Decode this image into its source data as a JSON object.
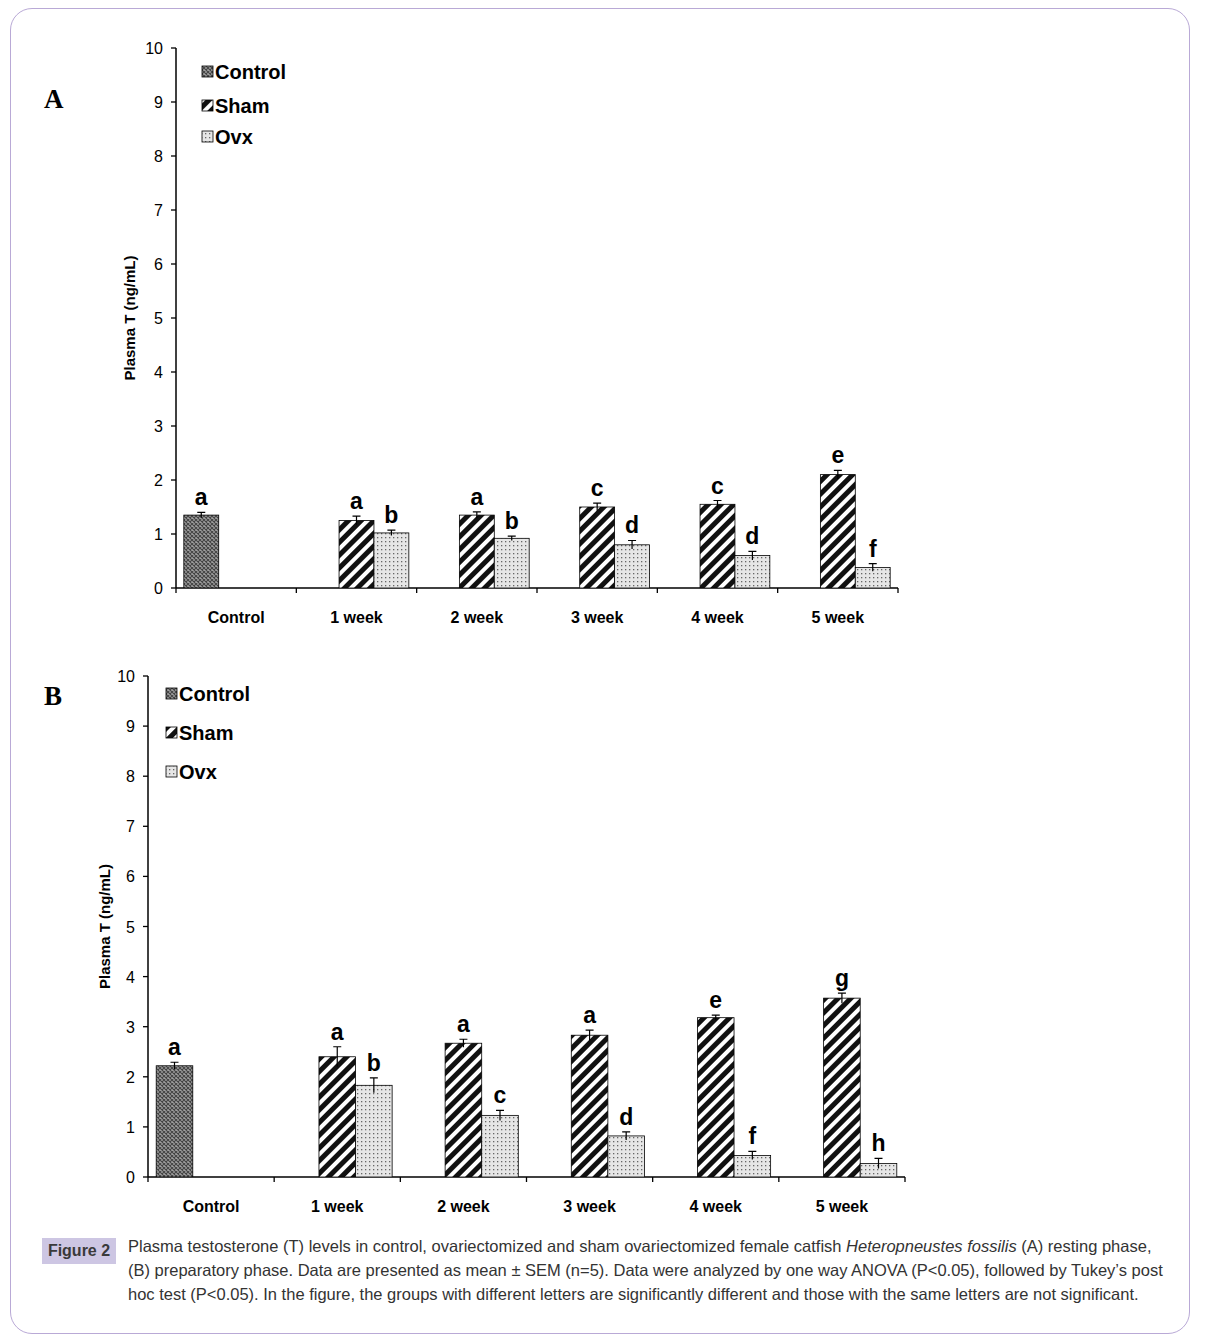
{
  "chart_data": [
    {
      "type": "bar",
      "title": "A",
      "y_label": "Plasma T (ng/mL)",
      "categories": [
        "Control",
        "1 week",
        "2 week",
        "3 week",
        "4 week",
        "5 week"
      ],
      "series": [
        {
          "name": "Control",
          "color": "#444444",
          "values": [
            1.35,
            null,
            null,
            null,
            null,
            null
          ],
          "errors": [
            0.05,
            null,
            null,
            null,
            null,
            null
          ],
          "letters": [
            "a",
            null,
            null,
            null,
            null,
            null
          ]
        },
        {
          "name": "Sham",
          "color": "#111111",
          "values": [
            null,
            1.25,
            1.35,
            1.5,
            1.55,
            2.1
          ],
          "errors": [
            null,
            0.08,
            0.06,
            0.07,
            0.07,
            0.08
          ],
          "letters": [
            null,
            "a",
            "a",
            "c",
            "c",
            "e"
          ]
        },
        {
          "name": "Ovx",
          "color": "#666666",
          "values": [
            null,
            1.02,
            0.92,
            0.8,
            0.6,
            0.38
          ],
          "errors": [
            null,
            0.05,
            0.04,
            0.08,
            0.08,
            0.07
          ],
          "letters": [
            null,
            "b",
            "b",
            "d",
            "d",
            "f"
          ]
        }
      ],
      "ylim": [
        0,
        10
      ],
      "yticks": [
        0,
        1,
        2,
        3,
        4,
        5,
        6,
        7,
        8,
        9,
        10
      ],
      "grid": false,
      "legend": "upper left"
    },
    {
      "type": "bar",
      "title": "B",
      "y_label": "Plasma T (ng/mL)",
      "categories": [
        "Control",
        "1 week",
        "2 week",
        "3 week",
        "4 week",
        "5 week"
      ],
      "series": [
        {
          "name": "Control",
          "color": "#444444",
          "values": [
            2.22,
            null,
            null,
            null,
            null,
            null
          ],
          "errors": [
            0.07,
            null,
            null,
            null,
            null,
            null
          ],
          "letters": [
            "a",
            null,
            null,
            null,
            null,
            null
          ]
        },
        {
          "name": "Sham",
          "color": "#111111",
          "values": [
            null,
            2.4,
            2.67,
            2.83,
            3.18,
            3.57
          ],
          "errors": [
            null,
            0.2,
            0.08,
            0.1,
            0.05,
            0.1
          ],
          "letters": [
            null,
            "a",
            "a",
            "a",
            "e",
            "g"
          ]
        },
        {
          "name": "Ovx",
          "color": "#666666",
          "values": [
            null,
            1.83,
            1.23,
            0.82,
            0.43,
            0.27
          ],
          "errors": [
            null,
            0.15,
            0.1,
            0.08,
            0.08,
            0.1
          ],
          "letters": [
            null,
            "b",
            "c",
            "d",
            "f",
            "h"
          ]
        }
      ],
      "ylim": [
        0,
        10
      ],
      "yticks": [
        0,
        1,
        2,
        3,
        4,
        5,
        6,
        7,
        8,
        9,
        10
      ],
      "grid": false,
      "legend": "upper left"
    }
  ],
  "caption": {
    "label": "Figure 2",
    "parts": [
      {
        "text": "Plasma testosterone (T) levels in control, ovariectomized and sham ovariectomized female catfish ",
        "style": "normal"
      },
      {
        "text": "Heteropneustes fossilis",
        "style": "italic"
      },
      {
        "text": " (A) resting phase, (B) preparatory phase. Data are presented as mean ± SEM (n=5). Data were analyzed by one way  ANOVA (P<0.05), followed by Tukey’s post hoc test (P<0.05). In the figure, the groups with different letters are significantly different and those with the same letters are not significant.",
        "style": "normal"
      }
    ]
  }
}
